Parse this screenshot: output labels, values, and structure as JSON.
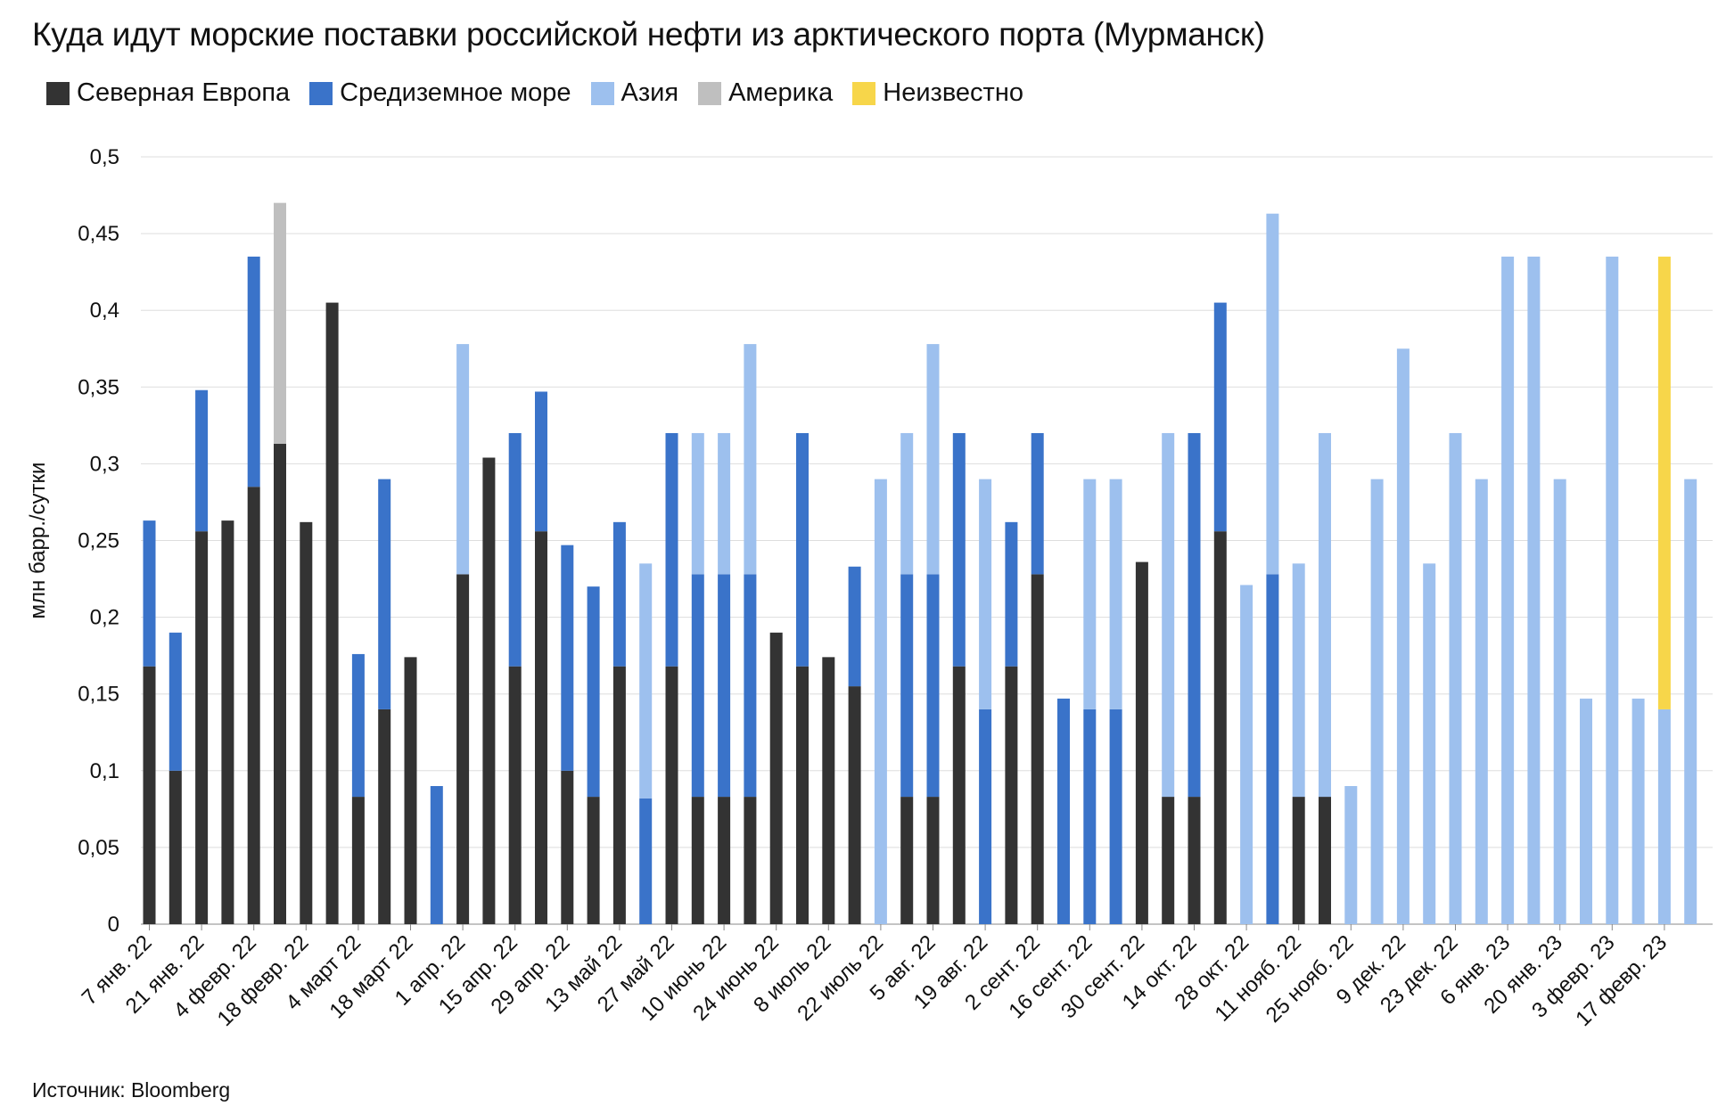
{
  "title": "Куда идут морские поставки российской нефти из арктического порта (Мурманск)",
  "source": "Источник: Bloomberg",
  "chart_data": {
    "type": "bar",
    "stacked": true,
    "title": "Куда идут морские поставки российской нефти из арктического порта (Мурманск)",
    "xlabel": "",
    "ylabel": "млн барр./сутки",
    "ylim": [
      0,
      0.5
    ],
    "yticks": [
      "0",
      "0,05",
      "0,1",
      "0,15",
      "0,2",
      "0,25",
      "0,3",
      "0,35",
      "0,4",
      "0,45",
      "0,5"
    ],
    "grid": true,
    "legend_position": "top-left",
    "tick_labels": [
      "7 янв. 22",
      "21 янв. 22",
      "4 февр. 22",
      "18 февр. 22",
      "4 март 22",
      "18 март 22",
      "1 апр. 22",
      "15 апр. 22",
      "29 апр. 22",
      "13 май 22",
      "27 май 22",
      "10 июнь 22",
      "24 июнь 22",
      "8 июль 22",
      "22 июль 22",
      "5 авг. 22",
      "19 авг. 22",
      "2 сент. 22",
      "16 сент. 22",
      "30 сент. 22",
      "14 окт. 22",
      "28 окт. 22",
      "11 нояб. 22",
      "25 нояб. 22",
      "9 дек. 22",
      "23 дек. 22",
      "6 янв. 23",
      "20 янв. 23",
      "3 февр. 23",
      "17 февр. 23"
    ],
    "bar_count": 60,
    "series": [
      {
        "name": "Северная Европа",
        "color": "#333333",
        "values": [
          0.168,
          0.1,
          0.256,
          0.263,
          0.285,
          0.313,
          0.262,
          0.405,
          0.083,
          0.14,
          0.174,
          0,
          0.228,
          0.304,
          0.168,
          0.256,
          0.1,
          0.083,
          0.168,
          0,
          0.168,
          0.083,
          0.083,
          0.083,
          0.19,
          0.168,
          0.174,
          0.155,
          0,
          0.083,
          0.083,
          0.168,
          0,
          0.168,
          0.228,
          0,
          0,
          0,
          0.236,
          0.083,
          0.083,
          0.256,
          0,
          0,
          0.083,
          0.083,
          0,
          0,
          0,
          0,
          0,
          0,
          0,
          0,
          0,
          0,
          0,
          0,
          0,
          0
        ]
      },
      {
        "name": "Средиземное море",
        "color": "#3a73c9",
        "values": [
          0.095,
          0.09,
          0.092,
          0,
          0.15,
          0,
          0,
          0,
          0.093,
          0.15,
          0,
          0.09,
          0,
          0,
          0.152,
          0.091,
          0.147,
          0.137,
          0.094,
          0.082,
          0.152,
          0.145,
          0.145,
          0.145,
          0,
          0.152,
          0,
          0.078,
          0,
          0.145,
          0.145,
          0.152,
          0.14,
          0.094,
          0.092,
          0.147,
          0.14,
          0.14,
          0,
          0,
          0.237,
          0.149,
          0,
          0.228,
          0,
          0,
          0,
          0,
          0,
          0,
          0,
          0,
          0,
          0,
          0,
          0,
          0,
          0,
          0,
          0
        ]
      },
      {
        "name": "Азия",
        "color": "#9dc0ee",
        "values": [
          0,
          0,
          0,
          0,
          0,
          0,
          0,
          0,
          0,
          0,
          0,
          0,
          0.15,
          0,
          0,
          0,
          0,
          0,
          0,
          0.153,
          0,
          0.092,
          0.092,
          0.15,
          0,
          0,
          0,
          0,
          0.29,
          0.092,
          0.15,
          0,
          0.15,
          0,
          0,
          0,
          0.15,
          0.15,
          0,
          0.237,
          0,
          0,
          0.221,
          0.235,
          0.152,
          0.237,
          0.09,
          0.29,
          0.375,
          0.235,
          0.32,
          0.29,
          0.435,
          0.435,
          0.29,
          0.147,
          0.435,
          0.147,
          0.14,
          0.29
        ]
      },
      {
        "name": "Америка",
        "color": "#bfbfbf",
        "values": [
          0,
          0,
          0,
          0,
          0,
          0.157,
          0,
          0,
          0,
          0,
          0,
          0,
          0,
          0,
          0,
          0,
          0,
          0,
          0,
          0,
          0,
          0,
          0,
          0,
          0,
          0,
          0,
          0,
          0,
          0,
          0,
          0,
          0,
          0,
          0,
          0,
          0,
          0,
          0,
          0,
          0,
          0,
          0,
          0,
          0,
          0,
          0,
          0,
          0,
          0,
          0,
          0,
          0,
          0,
          0,
          0,
          0,
          0,
          0,
          0
        ]
      },
      {
        "name": "Неизвестно",
        "color": "#f7d64a",
        "values": [
          0,
          0,
          0,
          0,
          0,
          0,
          0,
          0,
          0,
          0,
          0,
          0,
          0,
          0,
          0,
          0,
          0,
          0,
          0,
          0,
          0,
          0,
          0,
          0,
          0,
          0,
          0,
          0,
          0,
          0,
          0,
          0,
          0,
          0,
          0,
          0,
          0,
          0,
          0,
          0,
          0,
          0,
          0,
          0,
          0,
          0,
          0,
          0,
          0,
          0,
          0,
          0,
          0,
          0,
          0,
          0,
          0,
          0,
          0.295,
          0
        ]
      }
    ]
  }
}
